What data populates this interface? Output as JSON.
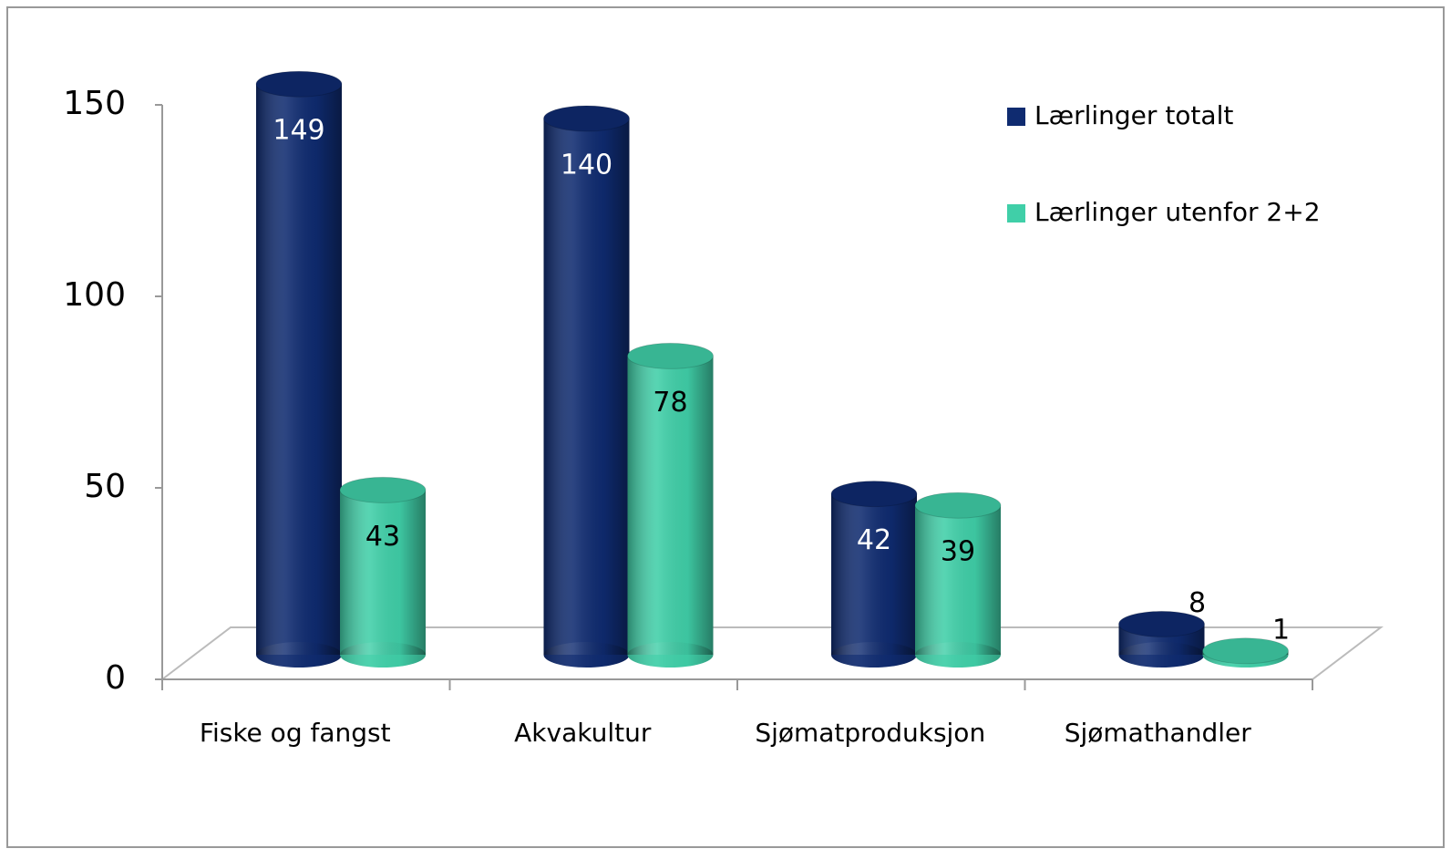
{
  "chart_data": {
    "type": "bar3d",
    "categories": [
      "Fiske og fangst",
      "Akvakultur",
      "Sjømatproduksjon",
      "Sjømathandler"
    ],
    "series": [
      {
        "name": "Lærlinger totalt",
        "color": "#0f2b70",
        "values": [
          149,
          140,
          42,
          8
        ]
      },
      {
        "name": "Lærlinger utenfor 2+2",
        "color": "#40cfa8",
        "values": [
          43,
          78,
          39,
          1
        ]
      }
    ],
    "ylim": [
      0,
      150
    ],
    "yticks": [
      0,
      50,
      100,
      150
    ],
    "legend": "upper right"
  }
}
